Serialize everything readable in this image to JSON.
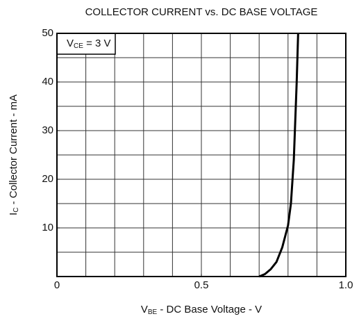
{
  "chart_data": {
    "type": "line",
    "title": "COLLECTOR CURRENT vs. DC BASE VOLTAGE",
    "xlabel": {
      "main": "V",
      "sub": "BE",
      "rest": " - DC Base Voltage - V"
    },
    "ylabel": {
      "main": "I",
      "sub": "C",
      "rest": " - Collector Current - mA"
    },
    "annotation": {
      "main": "V",
      "sub": "CE",
      "rest": " = 3 V"
    },
    "xlim": [
      0,
      1.0
    ],
    "ylim": [
      0,
      50
    ],
    "xticks": [
      0,
      0.5,
      {
        "value": 1.0,
        "label": "1.0"
      }
    ],
    "yticks": [
      10,
      20,
      30,
      40,
      50
    ],
    "xgrid": [
      0.1,
      0.2,
      0.3,
      0.4,
      0.5,
      0.6,
      0.7,
      0.8,
      0.9
    ],
    "ygrid": [
      5,
      10,
      15,
      20,
      25,
      30,
      35,
      40,
      45
    ],
    "grid": true,
    "series": [
      {
        "name": "IC",
        "color": "#000000",
        "x": [
          0.7,
          0.72,
          0.74,
          0.76,
          0.78,
          0.8,
          0.81,
          0.82,
          0.83,
          0.835
        ],
        "values": [
          0,
          0.5,
          1.5,
          3,
          6,
          10.5,
          15,
          24,
          40,
          50
        ]
      }
    ]
  }
}
